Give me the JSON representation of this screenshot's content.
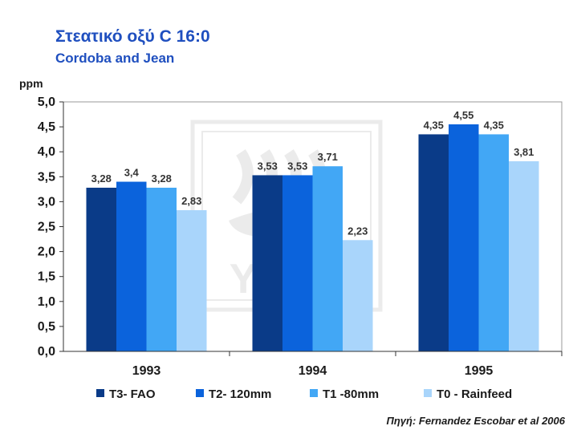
{
  "header": {
    "title": "Στεατικό οξύ C 16:0",
    "subtitle": "Cordoba and Jean"
  },
  "footer": {
    "source": "Πηγή: Fernandez Escobar et al 2006"
  },
  "watermark": {
    "text": "YARA"
  },
  "chart_data": {
    "type": "bar",
    "ylabel": "ppm",
    "xlabel": "",
    "ylim": [
      0,
      5
    ],
    "yticks": [
      "0,0",
      "0,5",
      "1,0",
      "1,5",
      "2,0",
      "2,5",
      "3,0",
      "3,5",
      "4,0",
      "4,5",
      "5,0"
    ],
    "grid": false,
    "legend_position": "bottom",
    "categories": [
      "1993",
      "1994",
      "1995"
    ],
    "series": [
      {
        "name": "T3- FAO",
        "values": [
          3.28,
          3.53,
          4.35
        ],
        "labels": [
          "3,28",
          "3,53",
          "4,35"
        ],
        "color": "#0a3b88"
      },
      {
        "name": "T2- 120mm",
        "values": [
          3.4,
          3.53,
          4.55
        ],
        "labels": [
          "3,4",
          "3,53",
          "4,55"
        ],
        "color": "#0b63dc"
      },
      {
        "name": "T1 -80mm",
        "values": [
          3.28,
          3.71,
          4.35
        ],
        "labels": [
          "3,28",
          "3,71",
          "4,35"
        ],
        "color": "#42a7f5"
      },
      {
        "name": "T0 - Rainfeed",
        "values": [
          2.83,
          2.23,
          3.81
        ],
        "labels": [
          "2,83",
          "2,23",
          "3,81"
        ],
        "color": "#a9d5fb"
      }
    ]
  }
}
